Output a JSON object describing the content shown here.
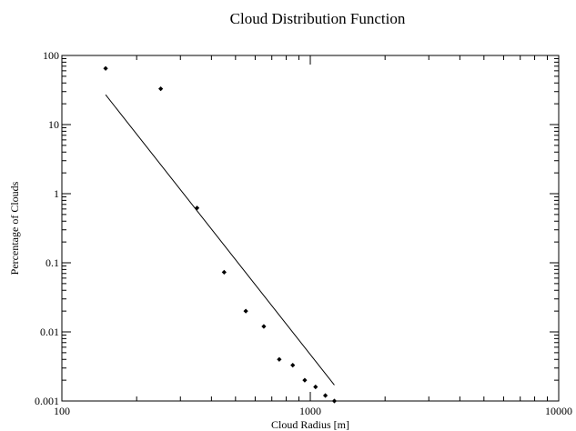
{
  "chart_data": {
    "type": "scatter",
    "title": "Cloud Distribution Function",
    "xlabel": "Cloud Radius [m]",
    "ylabel": "Percentage of Clouds",
    "xscale": "log",
    "yscale": "log",
    "xlim": [
      100,
      10000
    ],
    "ylim": [
      0.001,
      100
    ],
    "x_ticks": [
      {
        "value": 100,
        "label": "100"
      },
      {
        "value": 1000,
        "label": "1000"
      },
      {
        "value": 10000,
        "label": "10000"
      }
    ],
    "y_ticks": [
      {
        "value": 0.001,
        "label": "0.001"
      },
      {
        "value": 0.01,
        "label": "0.01"
      },
      {
        "value": 0.1,
        "label": "0.1"
      },
      {
        "value": 1,
        "label": "1"
      },
      {
        "value": 10,
        "label": "10"
      },
      {
        "value": 100,
        "label": "100"
      }
    ],
    "grid": false,
    "legend": "none",
    "series": [
      {
        "style": "markers",
        "marker": "diamond",
        "color": "#000000",
        "points": [
          {
            "x": 150,
            "y": 65
          },
          {
            "x": 250,
            "y": 33
          },
          {
            "x": 350,
            "y": 0.62
          },
          {
            "x": 450,
            "y": 0.073
          },
          {
            "x": 550,
            "y": 0.02
          },
          {
            "x": 650,
            "y": 0.012
          },
          {
            "x": 750,
            "y": 0.004
          },
          {
            "x": 850,
            "y": 0.0033
          },
          {
            "x": 950,
            "y": 0.002
          },
          {
            "x": 1050,
            "y": 0.0016
          },
          {
            "x": 1150,
            "y": 0.0012
          },
          {
            "x": 1250,
            "y": 0.001
          }
        ]
      },
      {
        "style": "line",
        "color": "#000000",
        "points": [
          {
            "x": 150,
            "y": 27
          },
          {
            "x": 1250,
            "y": 0.0017
          }
        ]
      }
    ]
  }
}
